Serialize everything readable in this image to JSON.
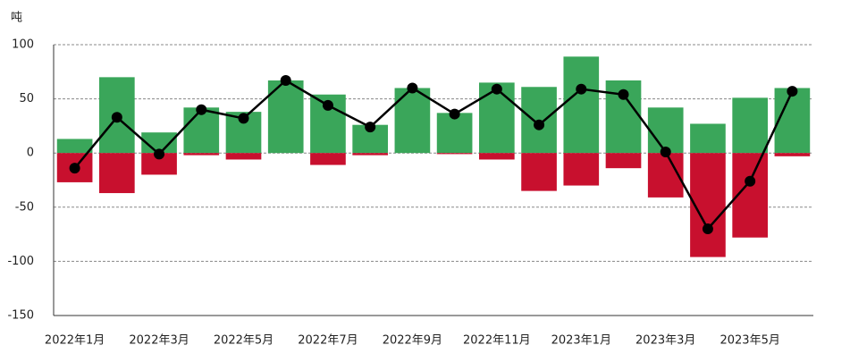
{
  "chart_data": {
    "type": "bar-line",
    "y_label": "吨",
    "categories": [
      "2022年1月",
      null,
      "2022年3月",
      null,
      "2022年5月",
      null,
      "2022年7月",
      null,
      "2022年9月",
      null,
      "2022年11月",
      null,
      "2023年1月",
      null,
      "2023年3月",
      null,
      "2023年5月",
      null
    ],
    "series": [
      {
        "type": "bar",
        "color": "#3aa65a",
        "values": [
          13,
          70,
          19,
          42,
          38,
          67,
          54,
          26,
          60,
          37,
          65,
          61,
          89,
          67,
          42,
          27,
          51,
          60
        ]
      },
      {
        "type": "bar",
        "color": "#c8102e",
        "values": [
          -27,
          -37,
          -20,
          -2,
          -6,
          0,
          -11,
          -2,
          0,
          -1,
          -6,
          -35,
          -30,
          -14,
          -41,
          -96,
          -78,
          -3
        ]
      },
      {
        "type": "line",
        "color": "#000000",
        "values": [
          -14,
          33,
          -1,
          40,
          32,
          67,
          44,
          24,
          60,
          36,
          59,
          26,
          59,
          54,
          1,
          -70,
          -26,
          57
        ]
      }
    ],
    "ylim": [
      -150,
      100
    ],
    "yticks": [
      -150,
      -100,
      -50,
      0,
      50,
      100
    ],
    "grid": true
  }
}
